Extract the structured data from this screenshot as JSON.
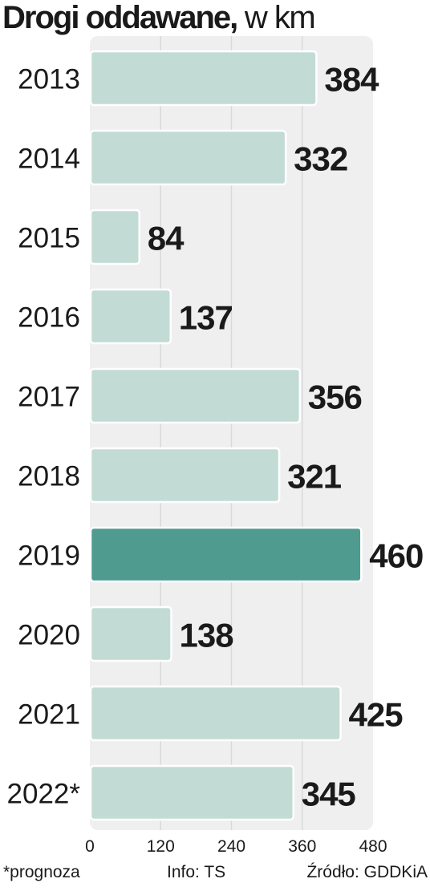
{
  "title": {
    "main": "Drogi oddawane,",
    "unit": "w km"
  },
  "chart_data": {
    "type": "bar",
    "orientation": "horizontal",
    "title": "Drogi oddawane, w km",
    "categories": [
      "2013",
      "2014",
      "2015",
      "2016",
      "2017",
      "2018",
      "2019",
      "2020",
      "2021",
      "2022*"
    ],
    "values": [
      384,
      332,
      84,
      137,
      356,
      321,
      460,
      138,
      425,
      345
    ],
    "highlight_index": 6,
    "xlim": [
      0,
      480
    ],
    "xticks": [
      0,
      120,
      240,
      360,
      480
    ],
    "grid": true,
    "colors": {
      "bar": "#c2dcd5",
      "highlight": "#4f9b8f",
      "plot_bg": "#efefef",
      "grid": "#d9d9d9"
    }
  },
  "footer": {
    "note": "*prognoza",
    "info": "Info: TS",
    "source": "Źródło: GDDKiA"
  }
}
